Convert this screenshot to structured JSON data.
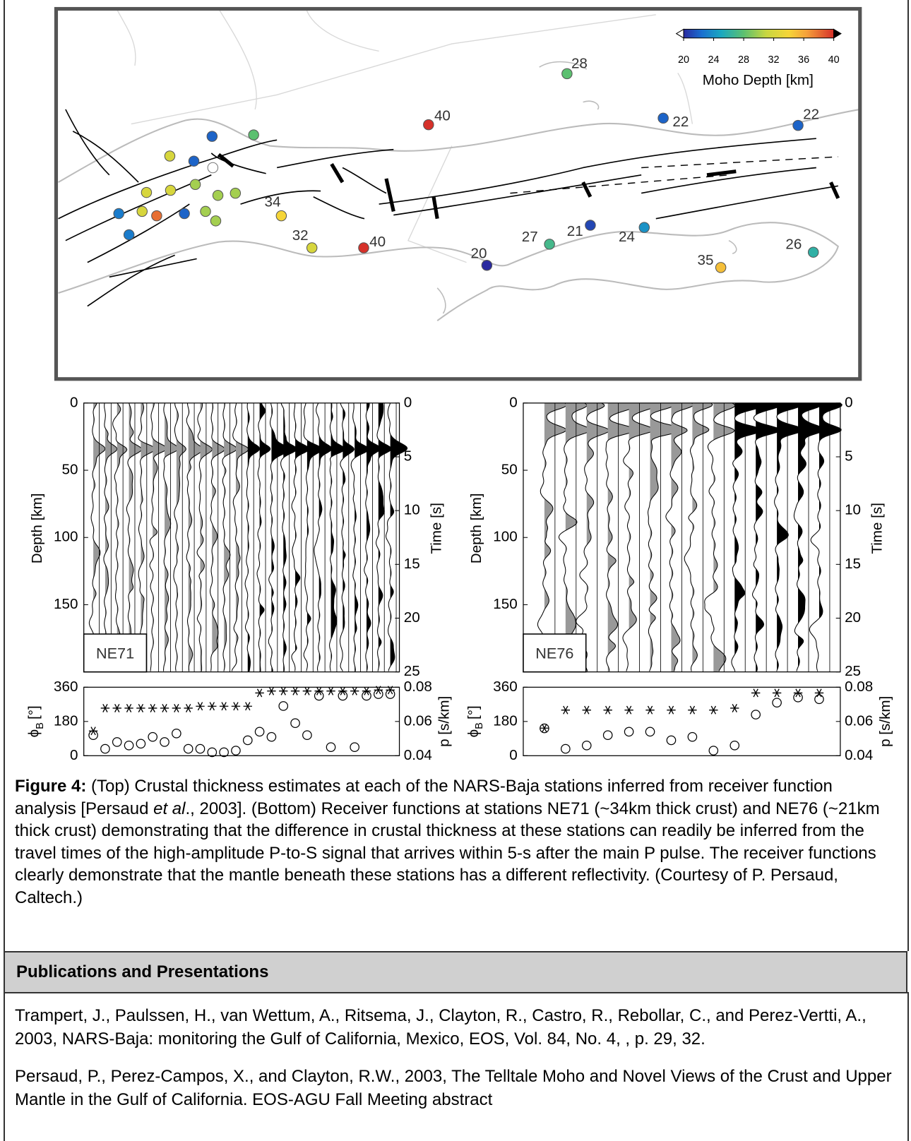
{
  "figure": {
    "map": {
      "colorbar": {
        "label": "Moho Depth [km]",
        "lim": [
          20,
          40
        ],
        "ticks": [
          20,
          24,
          28,
          32,
          36,
          40
        ]
      },
      "stations": [
        28,
        40,
        22,
        22,
        34,
        32,
        40,
        20,
        27,
        21,
        24,
        35,
        26
      ],
      "unlabeled_stations": [
        22,
        28,
        32,
        22,
        32,
        32,
        30,
        30,
        30,
        23,
        32,
        38,
        22,
        30,
        30,
        23
      ]
    },
    "panels": [
      {
        "station": "NE71",
        "depth_label": "Depth [km]",
        "depth_lim": [
          0,
          200
        ],
        "depth_ticks": [
          0,
          50,
          100,
          150
        ],
        "time_label": "Time [s]",
        "time_lim": [
          0,
          25
        ],
        "time_ticks": [
          0,
          5,
          10,
          15,
          20,
          25
        ],
        "phi_label": {
          "symbol": "ϕ",
          "subscript": "B",
          "unit": "[°]"
        },
        "phi_lim": [
          0,
          360
        ],
        "phi_ticks": [
          0,
          180,
          360
        ],
        "p_label": "p [s/km]",
        "p_lim": [
          0.04,
          0.08
        ],
        "p_ticks": [
          0.04,
          0.06,
          0.08
        ],
        "phi": [
          130,
          250,
          250,
          250,
          250,
          250,
          250,
          250,
          250,
          260,
          260,
          260,
          260,
          260,
          330,
          340,
          340,
          340,
          340,
          340,
          340,
          340,
          340,
          340,
          345,
          345
        ],
        "p": [
          0.052,
          0.044,
          0.048,
          0.046,
          0.047,
          0.051,
          0.048,
          0.053,
          0.044,
          0.044,
          0.042,
          0.042,
          0.043,
          0.049,
          0.054,
          0.051,
          0.069,
          0.059,
          0.052,
          0.075,
          0.045,
          0.075,
          0.045,
          0.075,
          0.076,
          0.076
        ]
      },
      {
        "station": "NE76",
        "depth_label": "Depth [km]",
        "depth_lim": [
          0,
          200
        ],
        "depth_ticks": [
          0,
          50,
          100,
          150
        ],
        "time_label": "Time [s]",
        "time_lim": [
          0,
          25
        ],
        "time_ticks": [
          0,
          5,
          10,
          15,
          20,
          25
        ],
        "phi_label": {
          "symbol": "ϕ",
          "subscript": "B",
          "unit": "[°]"
        },
        "phi_lim": [
          0,
          360
        ],
        "phi_ticks": [
          0,
          180,
          360
        ],
        "p_label": "p [s/km]",
        "p_lim": [
          0.04,
          0.08
        ],
        "p_ticks": [
          0.04,
          0.06,
          0.08
        ],
        "phi": [
          145,
          240,
          240,
          240,
          240,
          240,
          240,
          240,
          240,
          250,
          330,
          330,
          330,
          330
        ],
        "p": [
          0.056,
          0.044,
          0.046,
          0.052,
          0.054,
          0.054,
          0.049,
          0.051,
          0.043,
          0.046,
          0.064,
          0.071,
          0.074,
          0.073
        ]
      }
    ]
  },
  "caption": {
    "label": "Figure 4:",
    "text_before": " (Top) Crustal thickness estimates at each of the NARS-Baja stations inferred from receiver function analysis [Persaud ",
    "italic": "et al",
    "text_after": "., 2003]. (Bottom) Receiver functions at stations NE71 (~34km thick crust) and NE76 (~21km thick crust) demonstrating that the difference in crustal thickness at these stations can readily be inferred from the travel times of the high-amplitude P-to-S signal that arrives within 5-s after the main P pulse. The receiver functions clearly demonstrate that the mantle beneath these stations has a different reflectivity. (Courtesy of P. Persaud, Caltech.)"
  },
  "section": {
    "title": "Publications and Presentations"
  },
  "references": [
    "Trampert, J., Paulssen, H., van Wettum, A., Ritsema, J., Clayton, R., Castro, R., Rebollar, C., and Perez-Vertti, A., 2003, NARS-Baja: monitoring the Gulf of California, Mexico, EOS, Vol. 84, No. 4, , p. 29, 32.",
    "Persaud, P., Perez-Campos, X., and Clayton, R.W., 2003, The Telltale Moho and Novel Views of the Crust and Upper Mantle in the Gulf of California. EOS-AGU Fall Meeting abstract"
  ]
}
